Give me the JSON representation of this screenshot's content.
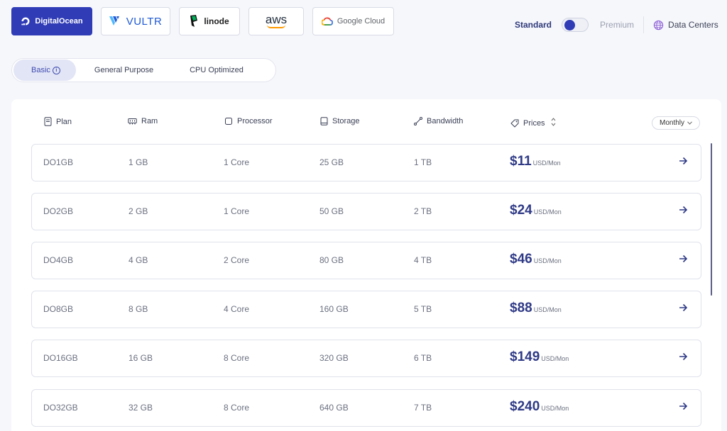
{
  "providers": [
    {
      "name": "DigitalOcean",
      "active": true
    },
    {
      "name": "VULTR",
      "active": false
    },
    {
      "name": "linode",
      "active": false
    },
    {
      "name": "aws",
      "active": false
    },
    {
      "name": "Google Cloud",
      "active": false
    }
  ],
  "tier": {
    "standard_label": "Standard",
    "premium_label": "Premium",
    "selected": "Standard"
  },
  "data_centers_label": "Data Centers",
  "categories": {
    "basic": "Basic",
    "general": "General Purpose",
    "cpu": "CPU Optimized",
    "selected": "Basic"
  },
  "table": {
    "headers": {
      "plan": "Plan",
      "ram": "Ram",
      "processor": "Processor",
      "storage": "Storage",
      "bandwidth": "Bandwidth",
      "prices": "Prices"
    },
    "period": "Monthly",
    "rows": [
      {
        "plan": "DO1GB",
        "ram": "1 GB",
        "processor": "1 Core",
        "storage": "25 GB",
        "bandwidth": "1 TB",
        "price": "$11",
        "unit": "USD/Mon"
      },
      {
        "plan": "DO2GB",
        "ram": "2 GB",
        "processor": "1 Core",
        "storage": "50 GB",
        "bandwidth": "2 TB",
        "price": "$24",
        "unit": "USD/Mon"
      },
      {
        "plan": "DO4GB",
        "ram": "4 GB",
        "processor": "2 Core",
        "storage": "80 GB",
        "bandwidth": "4 TB",
        "price": "$46",
        "unit": "USD/Mon"
      },
      {
        "plan": "DO8GB",
        "ram": "8 GB",
        "processor": "4 Core",
        "storage": "160 GB",
        "bandwidth": "5 TB",
        "price": "$88",
        "unit": "USD/Mon"
      },
      {
        "plan": "DO16GB",
        "ram": "16 GB",
        "processor": "8 Core",
        "storage": "320 GB",
        "bandwidth": "6 TB",
        "price": "$149",
        "unit": "USD/Mon"
      },
      {
        "plan": "DO32GB",
        "ram": "32 GB",
        "processor": "8 Core",
        "storage": "640 GB",
        "bandwidth": "7 TB",
        "price": "$240",
        "unit": "USD/Mon"
      }
    ]
  },
  "colors": {
    "accent": "#2f3cb6",
    "price_text": "#2f3a86",
    "page_background": "#f6f7fb"
  },
  "icons": {
    "digitalocean": "digitalocean-logo-icon",
    "vultr": "vultr-logo-icon",
    "linode": "linode-logo-icon",
    "aws": "aws-smile-icon",
    "google_cloud": "google-cloud-icon",
    "data_centers": "globe-icon",
    "plan": "document-icon",
    "ram": "memory-icon",
    "processor": "chip-icon",
    "storage": "drive-icon",
    "bandwidth": "route-icon",
    "prices": "tag-icon",
    "sort": "sort-icon",
    "row_action": "arrow-right-icon"
  }
}
